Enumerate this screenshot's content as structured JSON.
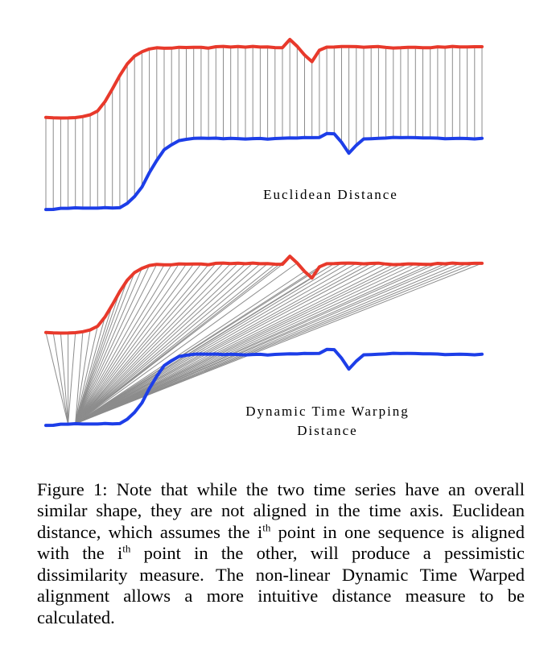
{
  "figure": {
    "panels": [
      {
        "id": "euclidean",
        "label": "Euclidean Distance"
      },
      {
        "id": "dtw",
        "label_line1": "Dynamic Time Warping",
        "label_line2": "Distance"
      }
    ],
    "colors": {
      "series_a": "#e8392b",
      "series_b": "#1d3ee8",
      "connector": "#8c8c8c"
    }
  },
  "caption": {
    "part1": "Figure 1: Note that while the two time series have an overall similar shape, they are not aligned in the time axis.  Euclidean distance, which assumes the i",
    "sup1": "th",
    "part2": " point in one sequence is aligned with the i",
    "sup2": "th",
    "part3": " point in the other, will produce a pessimistic dissimilarity measure.  The non-linear Dynamic Time Warped alignment allows a more intuitive distance measure to be calculated."
  }
}
